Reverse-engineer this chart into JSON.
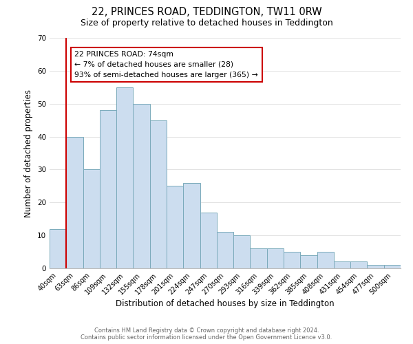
{
  "title": "22, PRINCES ROAD, TEDDINGTON, TW11 0RW",
  "subtitle": "Size of property relative to detached houses in Teddington",
  "xlabel": "Distribution of detached houses by size in Teddington",
  "ylabel": "Number of detached properties",
  "bar_labels": [
    "40sqm",
    "63sqm",
    "86sqm",
    "109sqm",
    "132sqm",
    "155sqm",
    "178sqm",
    "201sqm",
    "224sqm",
    "247sqm",
    "270sqm",
    "293sqm",
    "316sqm",
    "339sqm",
    "362sqm",
    "385sqm",
    "408sqm",
    "431sqm",
    "454sqm",
    "477sqm",
    "500sqm"
  ],
  "bar_values": [
    12,
    40,
    30,
    48,
    55,
    50,
    45,
    25,
    26,
    17,
    11,
    10,
    6,
    6,
    5,
    4,
    5,
    2,
    2,
    1,
    1
  ],
  "bar_color": "#ccddef",
  "bar_edge_color": "#7aaabb",
  "vline_x": 0.5,
  "vline_color": "#cc0000",
  "annotation_title": "22 PRINCES ROAD: 74sqm",
  "annotation_line1": "← 7% of detached houses are smaller (28)",
  "annotation_line2": "93% of semi-detached houses are larger (365) →",
  "annotation_box_color": "#ffffff",
  "annotation_box_edge": "#cc0000",
  "ylim": [
    0,
    70
  ],
  "yticks": [
    0,
    10,
    20,
    30,
    40,
    50,
    60,
    70
  ],
  "footer1": "Contains HM Land Registry data © Crown copyright and database right 2024.",
  "footer2": "Contains public sector information licensed under the Open Government Licence v3.0.",
  "bg_color": "#ffffff",
  "title_fontsize": 10.5,
  "subtitle_fontsize": 9,
  "xlabel_fontsize": 8.5,
  "ylabel_fontsize": 8.5,
  "tick_fontsize": 7,
  "footer_fontsize": 6,
  "footer_color": "#666666"
}
